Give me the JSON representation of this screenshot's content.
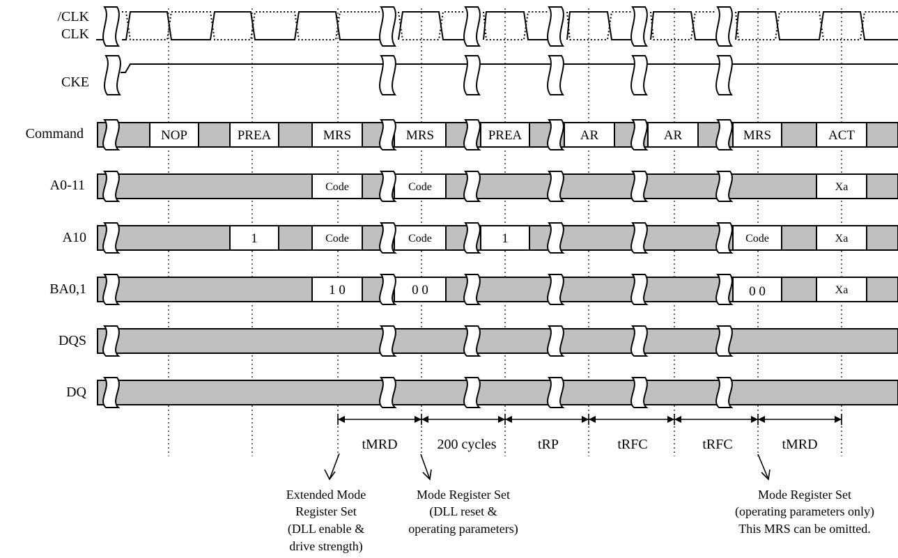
{
  "signals": {
    "clk_bar": "/CLK",
    "clk": "CLK",
    "cke": "CKE",
    "command": "Command",
    "a0_11": "A0-11",
    "a10": "A10",
    "ba": "BA0,1",
    "dqs": "DQS",
    "dq": "DQ"
  },
  "command_cells": [
    "NOP",
    "PREA",
    "MRS",
    "MRS",
    "PREA",
    "AR",
    "AR",
    "MRS",
    "ACT"
  ],
  "a0_11_cells": [
    "Code",
    "Code",
    "Xa"
  ],
  "a10_cells": [
    "1",
    "Code",
    "Code",
    "1",
    "Code",
    "Xa"
  ],
  "ba_cells": [
    "1 0",
    "0 0",
    "0 0",
    "Xa"
  ],
  "timings": [
    "tMRD",
    "200 cycles",
    "tRP",
    "tRFC",
    "tRFC",
    "tMRD"
  ],
  "notes": {
    "emrs": [
      "Extended Mode",
      "Register Set",
      "(DLL enable &",
      "drive strength)"
    ],
    "mrs_reset": [
      "Mode Register Set",
      "(DLL reset &",
      "operating parameters)"
    ],
    "mrs_op": [
      "Mode Register Set",
      "(operating parameters only)",
      "This MRS can be omitted."
    ]
  }
}
